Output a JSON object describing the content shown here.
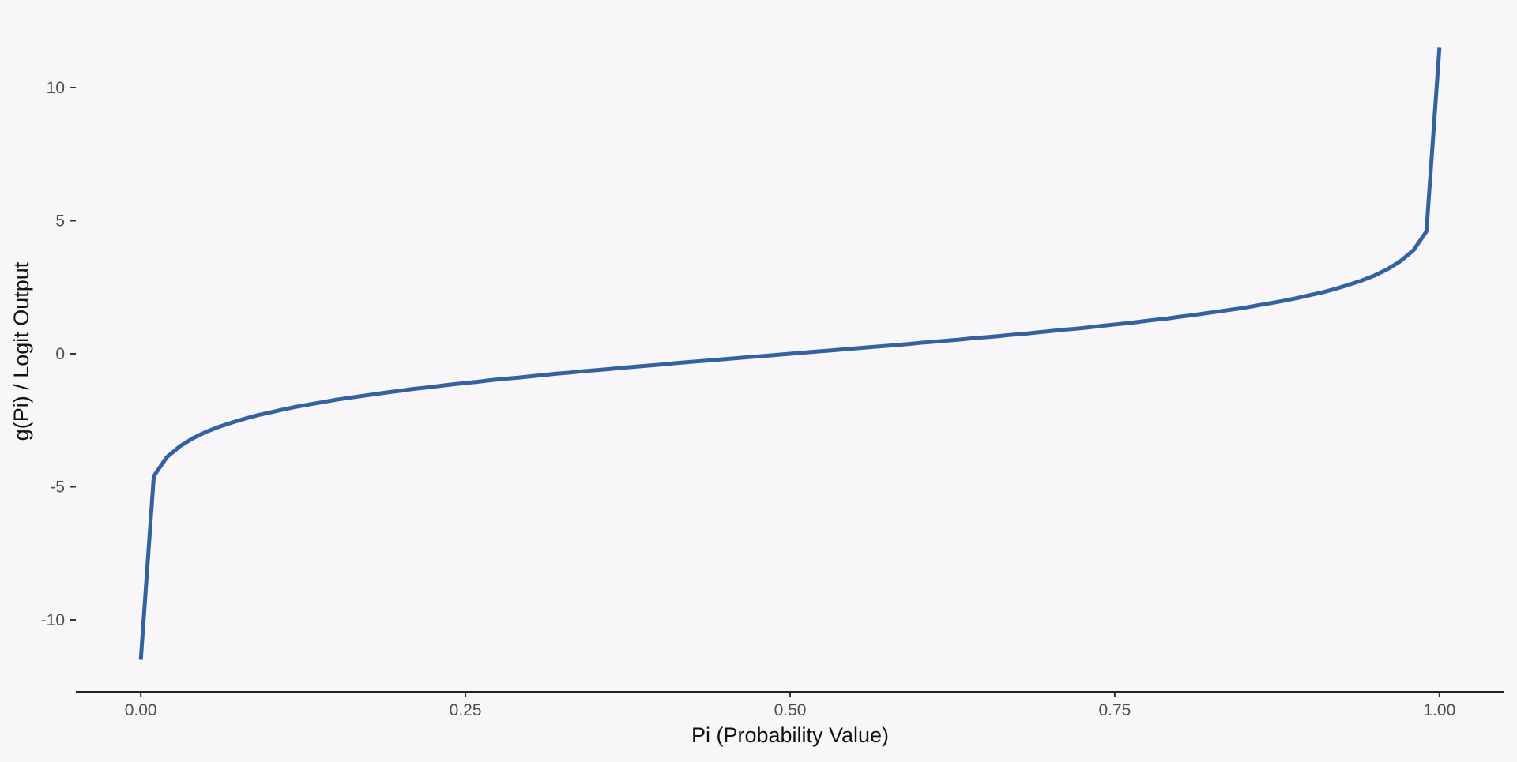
{
  "chart_data": {
    "type": "line",
    "title": "",
    "xlabel": "Pi (Probability Value)",
    "ylabel": "g(Pi) / Logit Output",
    "xlim": [
      -0.05,
      1.05
    ],
    "ylim": [
      -12.7,
      12.7
    ],
    "x_ticks": [
      0.0,
      0.25,
      0.5,
      0.75,
      1.0
    ],
    "x_tick_labels": [
      "0.00",
      "0.25",
      "0.50",
      "0.75",
      "1.00"
    ],
    "y_ticks": [
      10,
      5,
      0,
      -5,
      -10
    ],
    "y_tick_labels": [
      "10",
      "5",
      "0",
      "-5",
      "-10"
    ],
    "grid": false,
    "x_axis_line": true,
    "y_axis_line": false,
    "series": [
      {
        "color": "#3462a0",
        "x": [
          0.0,
          0.01,
          0.02,
          0.03,
          0.04,
          0.05,
          0.06,
          0.07,
          0.08,
          0.09,
          0.1,
          0.11,
          0.12,
          0.13,
          0.14,
          0.15,
          0.16,
          0.17,
          0.18,
          0.19,
          0.2,
          0.21,
          0.22,
          0.23,
          0.24,
          0.25,
          0.26,
          0.27,
          0.28,
          0.29,
          0.3,
          0.31,
          0.32,
          0.33,
          0.34,
          0.35,
          0.36,
          0.37,
          0.38,
          0.39,
          0.4,
          0.41,
          0.42,
          0.43,
          0.44,
          0.45,
          0.46,
          0.47,
          0.48,
          0.49,
          0.5,
          0.51,
          0.52,
          0.53,
          0.54,
          0.55,
          0.56,
          0.57,
          0.58,
          0.59,
          0.6,
          0.61,
          0.62,
          0.63,
          0.64,
          0.65,
          0.66,
          0.67,
          0.68,
          0.69,
          0.7,
          0.71,
          0.72,
          0.73,
          0.74,
          0.75,
          0.76,
          0.77,
          0.78,
          0.79,
          0.8,
          0.81,
          0.82,
          0.83,
          0.84,
          0.85,
          0.86,
          0.87,
          0.88,
          0.89,
          0.9,
          0.91,
          0.92,
          0.93,
          0.94,
          0.95,
          0.96,
          0.97,
          0.98,
          0.99,
          1.0
        ],
        "y": [
          -11.5,
          -4.6,
          -3.89,
          -3.48,
          -3.18,
          -2.94,
          -2.75,
          -2.59,
          -2.44,
          -2.31,
          -2.2,
          -2.09,
          -1.99,
          -1.9,
          -1.82,
          -1.73,
          -1.66,
          -1.59,
          -1.52,
          -1.45,
          -1.39,
          -1.32,
          -1.27,
          -1.21,
          -1.15,
          -1.1,
          -1.05,
          -0.99,
          -0.94,
          -0.9,
          -0.85,
          -0.8,
          -0.75,
          -0.71,
          -0.66,
          -0.62,
          -0.58,
          -0.53,
          -0.49,
          -0.45,
          -0.41,
          -0.36,
          -0.32,
          -0.28,
          -0.24,
          -0.2,
          -0.16,
          -0.12,
          -0.08,
          -0.04,
          0.0,
          0.04,
          0.08,
          0.12,
          0.16,
          0.2,
          0.24,
          0.28,
          0.32,
          0.36,
          0.41,
          0.45,
          0.49,
          0.53,
          0.58,
          0.62,
          0.66,
          0.71,
          0.75,
          0.8,
          0.85,
          0.9,
          0.94,
          0.99,
          1.05,
          1.1,
          1.15,
          1.21,
          1.27,
          1.32,
          1.39,
          1.45,
          1.52,
          1.59,
          1.66,
          1.73,
          1.82,
          1.9,
          1.99,
          2.09,
          2.2,
          2.31,
          2.44,
          2.59,
          2.75,
          2.94,
          3.18,
          3.48,
          3.89,
          4.6,
          11.5
        ]
      }
    ]
  }
}
